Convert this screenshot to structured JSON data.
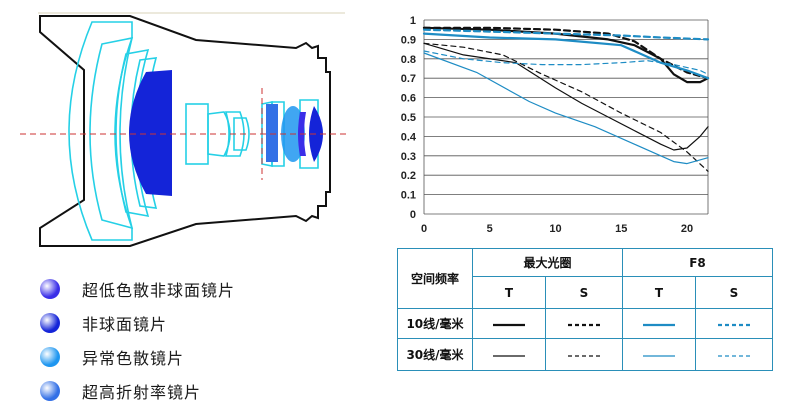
{
  "legend": [
    {
      "label": "超低色散非球面镜片",
      "color": "#3a2ee8"
    },
    {
      "label": "非球面镜片",
      "color": "#1424d8"
    },
    {
      "label": "异常色散镜片",
      "color": "#1e96f0"
    },
    {
      "label": "超高折射率镜片",
      "color": "#3370e6"
    }
  ],
  "table": {
    "header_label": "空间频率",
    "group_max": "最大光圈",
    "group_f8": "F8",
    "col_t": "T",
    "col_s": "S",
    "row_10": "10线/毫米",
    "row_30": "30线/毫米"
  },
  "colors": {
    "black": "#111111",
    "blue": "#1e8cc4"
  },
  "chart_data": {
    "type": "line",
    "xlim": [
      0,
      21.6
    ],
    "ylim": [
      0,
      1
    ],
    "x_ticks": [
      0,
      5,
      10,
      15,
      20
    ],
    "y_ticks": [
      0,
      0.1,
      0.2,
      0.3,
      0.4,
      0.5,
      0.6,
      0.7,
      0.8,
      0.9,
      1
    ],
    "y_tick_labels": [
      "0",
      "0.1",
      "0.2",
      "0.3",
      "0.4",
      "0.5",
      "0.6",
      "0.7",
      "0.8",
      "0.9",
      "1"
    ],
    "grid": "horizontal",
    "series": [
      {
        "name": "最大光圈 10线/毫米 T",
        "color": "black",
        "dash": "solid",
        "width": 2.2,
        "x": [
          0,
          5,
          10,
          14,
          16,
          18,
          19,
          20,
          21,
          21.6
        ],
        "y": [
          0.96,
          0.95,
          0.93,
          0.9,
          0.87,
          0.8,
          0.72,
          0.68,
          0.68,
          0.7
        ]
      },
      {
        "name": "最大光圈 10线/毫米 S",
        "color": "black",
        "dash": "dashed",
        "width": 2.2,
        "x": [
          0,
          5,
          10,
          14,
          16,
          18,
          20,
          21.6
        ],
        "y": [
          0.96,
          0.96,
          0.95,
          0.93,
          0.89,
          0.8,
          0.73,
          0.7
        ]
      },
      {
        "name": "最大光圈 30线/毫米 T",
        "color": "black",
        "dash": "solid",
        "width": 1.2,
        "x": [
          0,
          3,
          7,
          10,
          12,
          14,
          16,
          18,
          19,
          20,
          21,
          21.6
        ],
        "y": [
          0.88,
          0.82,
          0.78,
          0.65,
          0.57,
          0.5,
          0.43,
          0.36,
          0.33,
          0.34,
          0.4,
          0.45
        ]
      },
      {
        "name": "最大光圈 30线/毫米 S",
        "color": "black",
        "dash": "dashed",
        "width": 1.2,
        "x": [
          0,
          3,
          6,
          9,
          12,
          15,
          18,
          20,
          21.6
        ],
        "y": [
          0.88,
          0.86,
          0.82,
          0.72,
          0.63,
          0.52,
          0.42,
          0.32,
          0.22
        ]
      },
      {
        "name": "F8 10线/毫米 T",
        "color": "blue",
        "dash": "solid",
        "width": 2.2,
        "x": [
          0,
          5,
          10,
          15,
          18,
          20,
          21.6
        ],
        "y": [
          0.93,
          0.91,
          0.9,
          0.87,
          0.78,
          0.74,
          0.7
        ]
      },
      {
        "name": "F8 10线/毫米 S",
        "color": "blue",
        "dash": "dashed",
        "width": 2.2,
        "x": [
          0,
          5,
          10,
          15,
          18,
          21.6
        ],
        "y": [
          0.95,
          0.94,
          0.93,
          0.92,
          0.91,
          0.9
        ]
      },
      {
        "name": "F8 30线/毫米 T",
        "color": "blue",
        "dash": "solid",
        "width": 1.2,
        "x": [
          0,
          4,
          8,
          10,
          13,
          16,
          18,
          19,
          20,
          21.6
        ],
        "y": [
          0.83,
          0.73,
          0.58,
          0.52,
          0.45,
          0.36,
          0.3,
          0.27,
          0.26,
          0.29
        ]
      },
      {
        "name": "F8 30线/毫米 S",
        "color": "blue",
        "dash": "dashed",
        "width": 1.2,
        "x": [
          0,
          3,
          6,
          9,
          12,
          15,
          17,
          19,
          21,
          21.6
        ],
        "y": [
          0.84,
          0.8,
          0.78,
          0.77,
          0.77,
          0.78,
          0.79,
          0.77,
          0.74,
          0.72
        ]
      }
    ]
  }
}
